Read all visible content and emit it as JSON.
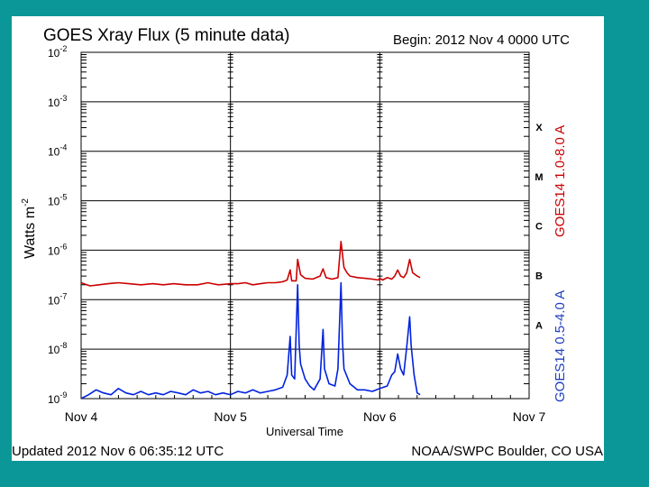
{
  "chart_data": {
    "type": "line",
    "title": "GOES Xray Flux (5 minute data)",
    "begin_text": "Begin:  2012 Nov 4 0000 UTC",
    "ylabel": "Watts m",
    "ylabel_sup": "-2",
    "xlabel": "Universal Time",
    "updated_text": "Updated 2012 Nov  6 06:35:12 UTC",
    "credit_text": "NOAA/SWPC Boulder, CO USA",
    "x_ticks": [
      "Nov 4",
      "Nov 5",
      "Nov 6",
      "Nov 7"
    ],
    "x_range_days": [
      0,
      3
    ],
    "y_scale": "log",
    "y_range": [
      1e-09,
      0.01
    ],
    "y_ticks": [
      {
        "base": "10",
        "exp": "-2"
      },
      {
        "base": "10",
        "exp": "-3"
      },
      {
        "base": "10",
        "exp": "-4"
      },
      {
        "base": "10",
        "exp": "-5"
      },
      {
        "base": "10",
        "exp": "-6"
      },
      {
        "base": "10",
        "exp": "-7"
      },
      {
        "base": "10",
        "exp": "-8"
      },
      {
        "base": "10",
        "exp": "-9"
      }
    ],
    "flare_classes": [
      "X",
      "M",
      "C",
      "B",
      "A"
    ],
    "grid": true,
    "series": [
      {
        "name": "GOES14 1.0-8.0 A",
        "color": "#cc0000",
        "points": [
          [
            0.0,
            2.2e-07
          ],
          [
            0.06,
            1.9e-07
          ],
          [
            0.12,
            2e-07
          ],
          [
            0.18,
            2.1e-07
          ],
          [
            0.25,
            2.2e-07
          ],
          [
            0.32,
            2.1e-07
          ],
          [
            0.4,
            2e-07
          ],
          [
            0.48,
            2.1e-07
          ],
          [
            0.55,
            2e-07
          ],
          [
            0.62,
            2.1e-07
          ],
          [
            0.7,
            2e-07
          ],
          [
            0.78,
            2e-07
          ],
          [
            0.85,
            2.2e-07
          ],
          [
            0.88,
            2.1e-07
          ],
          [
            0.92,
            2e-07
          ],
          [
            1.0,
            2.1e-07
          ],
          [
            1.05,
            2.1e-07
          ],
          [
            1.1,
            2.2e-07
          ],
          [
            1.15,
            2e-07
          ],
          [
            1.2,
            2.1e-07
          ],
          [
            1.25,
            2.2e-07
          ],
          [
            1.3,
            2.2e-07
          ],
          [
            1.35,
            2.3e-07
          ],
          [
            1.38,
            2.5e-07
          ],
          [
            1.4,
            4e-07
          ],
          [
            1.41,
            2.4e-07
          ],
          [
            1.44,
            2.4e-07
          ],
          [
            1.45,
            6.5e-07
          ],
          [
            1.47,
            3.2e-07
          ],
          [
            1.5,
            2.7e-07
          ],
          [
            1.55,
            2.6e-07
          ],
          [
            1.6,
            3e-07
          ],
          [
            1.62,
            4.2e-07
          ],
          [
            1.64,
            2.8e-07
          ],
          [
            1.68,
            2.6e-07
          ],
          [
            1.72,
            2.8e-07
          ],
          [
            1.74,
            1.5e-06
          ],
          [
            1.76,
            4.5e-07
          ],
          [
            1.78,
            3.5e-07
          ],
          [
            1.8,
            3e-07
          ],
          [
            1.85,
            2.8e-07
          ],
          [
            1.9,
            2.7e-07
          ],
          [
            1.95,
            2.6e-07
          ],
          [
            1.99,
            2.5e-07
          ],
          [
            2.0,
            2.7e-07
          ],
          [
            2.02,
            2.5e-07
          ],
          [
            2.05,
            2.8e-07
          ],
          [
            2.08,
            2.6e-07
          ],
          [
            2.1,
            3e-07
          ],
          [
            2.12,
            4e-07
          ],
          [
            2.14,
            3e-07
          ],
          [
            2.16,
            2.8e-07
          ],
          [
            2.18,
            3.5e-07
          ],
          [
            2.2,
            6.5e-07
          ],
          [
            2.22,
            3.5e-07
          ],
          [
            2.25,
            3e-07
          ],
          [
            2.27,
            2.8e-07
          ]
        ]
      },
      {
        "name": "GOES14 0.5-4.0 A",
        "color": "#0022dd",
        "points": [
          [
            0.0,
            1e-09
          ],
          [
            0.05,
            1.2e-09
          ],
          [
            0.1,
            1.5e-09
          ],
          [
            0.15,
            1.3e-09
          ],
          [
            0.2,
            1.2e-09
          ],
          [
            0.25,
            1.6e-09
          ],
          [
            0.3,
            1.3e-09
          ],
          [
            0.35,
            1.2e-09
          ],
          [
            0.4,
            1.4e-09
          ],
          [
            0.45,
            1.2e-09
          ],
          [
            0.5,
            1.3e-09
          ],
          [
            0.55,
            1.2e-09
          ],
          [
            0.6,
            1.4e-09
          ],
          [
            0.65,
            1.3e-09
          ],
          [
            0.7,
            1.2e-09
          ],
          [
            0.75,
            1.5e-09
          ],
          [
            0.8,
            1.3e-09
          ],
          [
            0.85,
            1.4e-09
          ],
          [
            0.9,
            1.2e-09
          ],
          [
            0.95,
            1.3e-09
          ],
          [
            1.0,
            1.2e-09
          ],
          [
            1.05,
            1.4e-09
          ],
          [
            1.1,
            1.3e-09
          ],
          [
            1.15,
            1.5e-09
          ],
          [
            1.2,
            1.3e-09
          ],
          [
            1.25,
            1.4e-09
          ],
          [
            1.3,
            1.5e-09
          ],
          [
            1.35,
            1.7e-09
          ],
          [
            1.38,
            3e-09
          ],
          [
            1.4,
            1.8e-08
          ],
          [
            1.41,
            3e-09
          ],
          [
            1.43,
            2.5e-09
          ],
          [
            1.45,
            2e-07
          ],
          [
            1.46,
            1.2e-08
          ],
          [
            1.47,
            5e-09
          ],
          [
            1.5,
            2.5e-09
          ],
          [
            1.53,
            1.8e-09
          ],
          [
            1.56,
            1.5e-09
          ],
          [
            1.6,
            2.5e-09
          ],
          [
            1.62,
            2.5e-08
          ],
          [
            1.63,
            4e-09
          ],
          [
            1.66,
            2e-09
          ],
          [
            1.7,
            1.8e-09
          ],
          [
            1.72,
            4e-09
          ],
          [
            1.73,
            3e-08
          ],
          [
            1.74,
            2.2e-07
          ],
          [
            1.75,
            1.5e-08
          ],
          [
            1.76,
            4e-09
          ],
          [
            1.8,
            2e-09
          ],
          [
            1.85,
            1.5e-09
          ],
          [
            1.9,
            1.5e-09
          ],
          [
            1.95,
            1.4e-09
          ],
          [
            2.0,
            1.6e-09
          ],
          [
            2.05,
            1.8e-09
          ],
          [
            2.08,
            3e-09
          ],
          [
            2.1,
            3.5e-09
          ],
          [
            2.12,
            8e-09
          ],
          [
            2.14,
            4e-09
          ],
          [
            2.16,
            3e-09
          ],
          [
            2.18,
            1.1e-08
          ],
          [
            2.2,
            4.5e-08
          ],
          [
            2.21,
            1.2e-08
          ],
          [
            2.23,
            3e-09
          ],
          [
            2.25,
            1.3e-09
          ],
          [
            2.27,
            1.2e-09
          ]
        ]
      }
    ]
  }
}
